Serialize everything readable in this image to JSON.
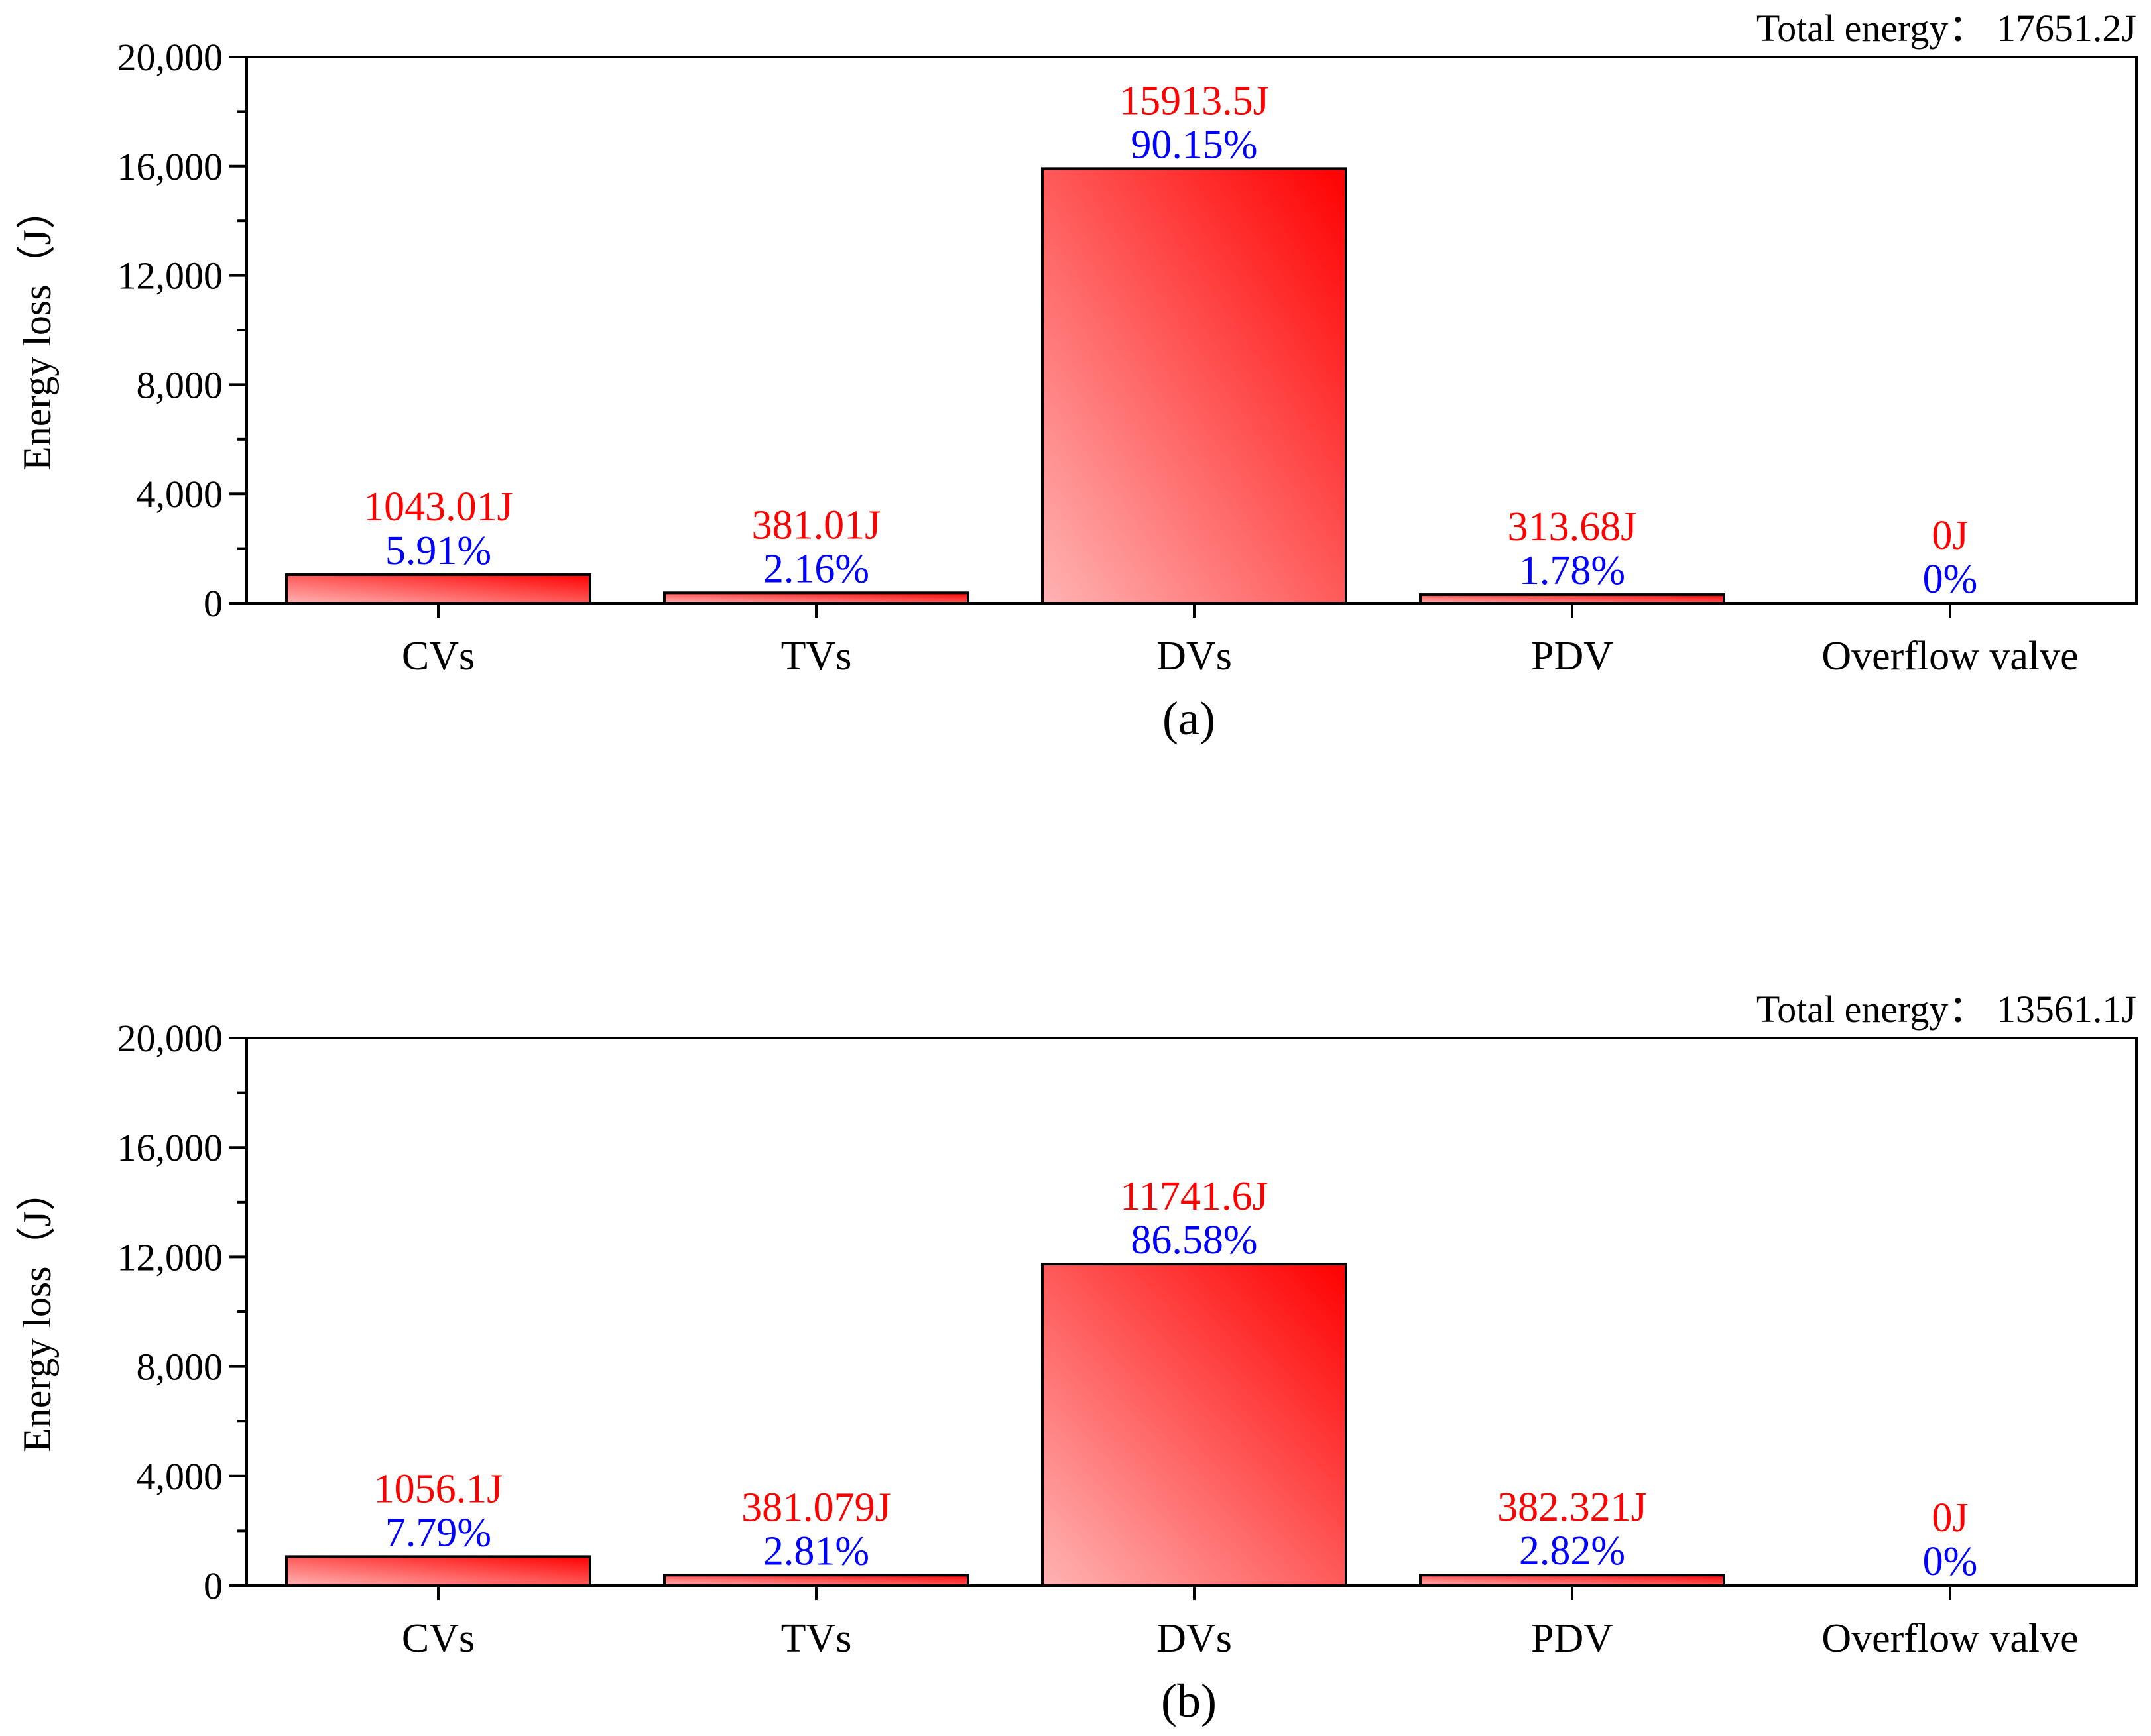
{
  "colors": {
    "bar_light": "#ffb3b3",
    "bar_dark": "#ff0000",
    "value_text": "#ff0000",
    "percent_text": "#0000ff",
    "axis": "#000000"
  },
  "chart_data": [
    {
      "type": "bar",
      "panel_label": "(a)",
      "total_label": "Total energy：  17651.2J",
      "ylabel": "Energy loss（J）",
      "xlabel": "",
      "ylim": [
        0,
        20000
      ],
      "yticks": [
        0,
        4000,
        8000,
        12000,
        16000,
        20000
      ],
      "ytick_labels": [
        "0",
        "4,000",
        "8,000",
        "12,000",
        "16,000",
        "20,000"
      ],
      "categories": [
        "CVs",
        "TVs",
        "DVs",
        "PDV",
        "Overflow valve"
      ],
      "values": [
        1043.01,
        381.01,
        15913.5,
        313.68,
        0
      ],
      "value_labels": [
        "1043.01J",
        "381.01J",
        "15913.5J",
        "313.68J",
        "0J"
      ],
      "percent_labels": [
        "5.91%",
        "2.16%",
        "90.15%",
        "1.78%",
        "0%"
      ]
    },
    {
      "type": "bar",
      "panel_label": "(b)",
      "total_label": "Total energy：  13561.1J",
      "ylabel": "Energy loss（J）",
      "xlabel": "",
      "ylim": [
        0,
        20000
      ],
      "yticks": [
        0,
        4000,
        8000,
        12000,
        16000,
        20000
      ],
      "ytick_labels": [
        "0",
        "4,000",
        "8,000",
        "12,000",
        "16,000",
        "20,000"
      ],
      "categories": [
        "CVs",
        "TVs",
        "DVs",
        "PDV",
        "Overflow valve"
      ],
      "values": [
        1056.1,
        381.079,
        11741.6,
        382.321,
        0
      ],
      "value_labels": [
        "1056.1J",
        "381.079J",
        "11741.6J",
        "382.321J",
        "0J"
      ],
      "percent_labels": [
        "7.79%",
        "2.81%",
        "86.58%",
        "2.82%",
        "0%"
      ]
    }
  ]
}
